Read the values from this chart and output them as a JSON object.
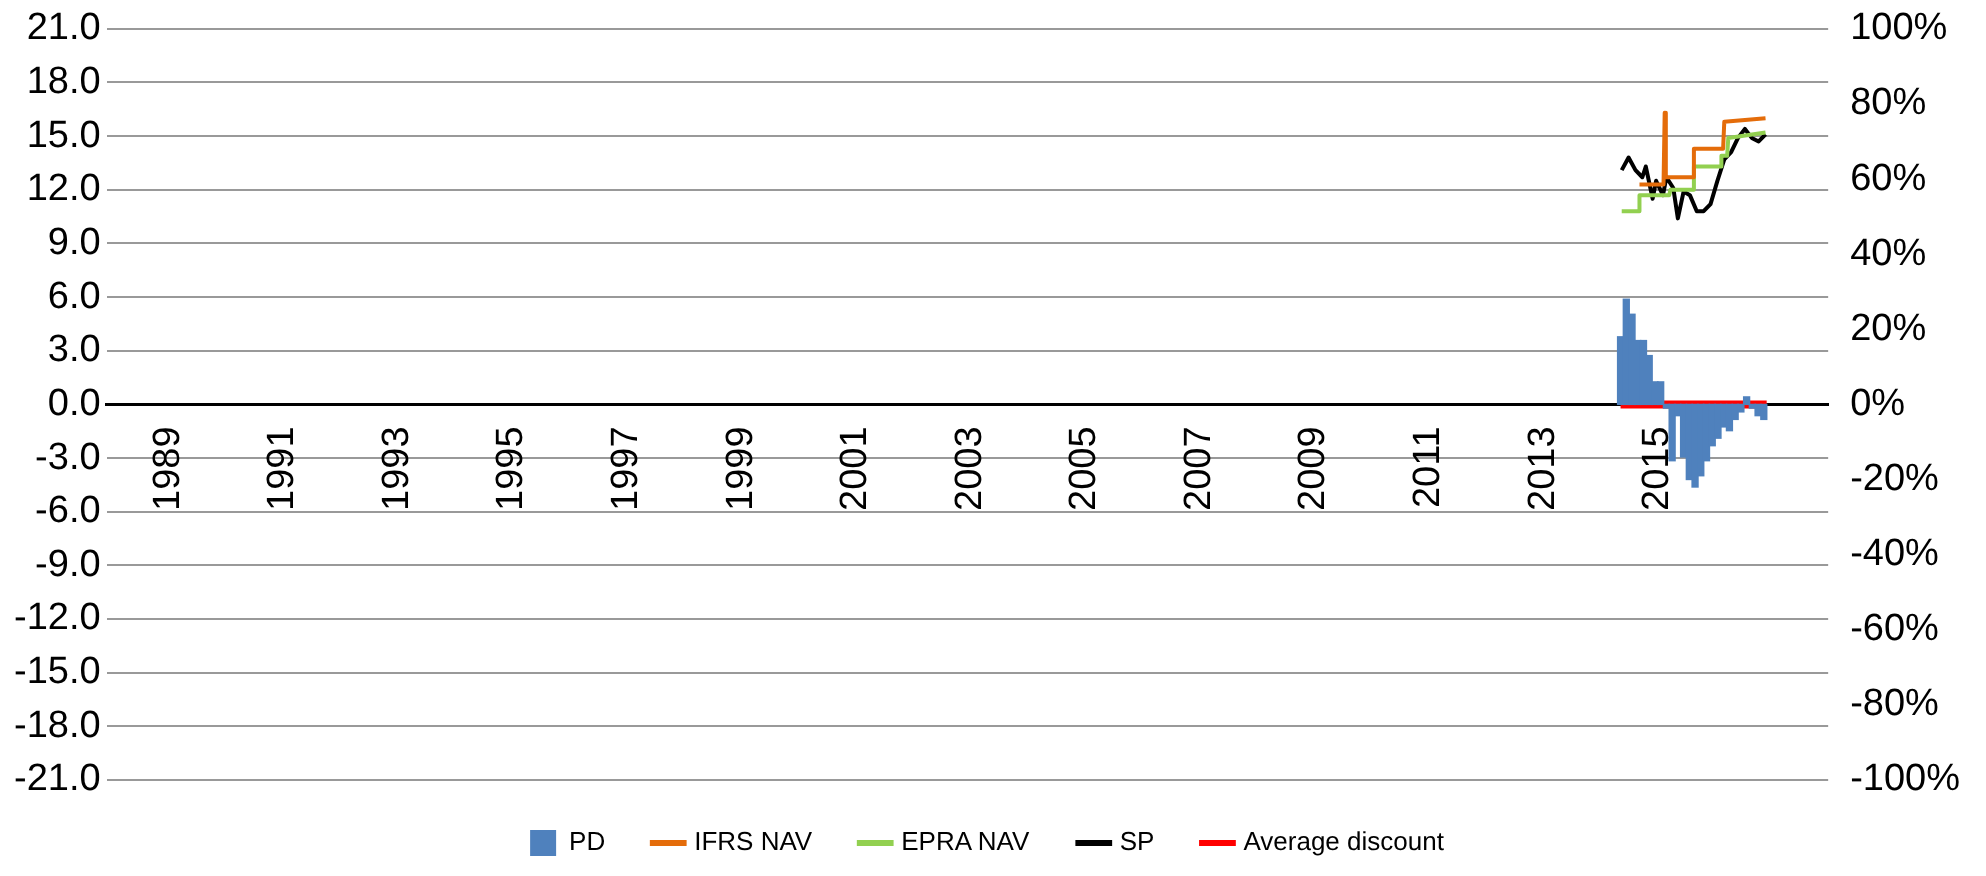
{
  "chart_data": {
    "type": "line",
    "xlim": [
      1989,
      2016.9
    ],
    "xticks": [
      1989,
      1991,
      1993,
      1995,
      1997,
      1999,
      2001,
      2003,
      2005,
      2007,
      2009,
      2011,
      2013,
      2015
    ],
    "ylim": [
      -21,
      21
    ],
    "yticks": [
      {
        "value": -21,
        "label": "-21.0"
      },
      {
        "value": -18,
        "label": "-18.0"
      },
      {
        "value": -15,
        "label": "-15.0"
      },
      {
        "value": -12,
        "label": "-12.0"
      },
      {
        "value": -9,
        "label": "-9.0"
      },
      {
        "value": -6,
        "label": "-6.0"
      },
      {
        "value": -3,
        "label": "-3.0"
      },
      {
        "value": 0,
        "label": "0.0"
      },
      {
        "value": 3,
        "label": "3.0"
      },
      {
        "value": 6,
        "label": "6.0"
      },
      {
        "value": 9,
        "label": "9.0"
      },
      {
        "value": 12,
        "label": "12.0"
      },
      {
        "value": 15,
        "label": "15.0"
      },
      {
        "value": 18,
        "label": "18.0"
      },
      {
        "value": 21,
        "label": "21.0"
      }
    ],
    "y2lim": [
      -100,
      100
    ],
    "y2ticks": [
      {
        "value": -100,
        "label": "-100%"
      },
      {
        "value": -80,
        "label": "-80%"
      },
      {
        "value": -60,
        "label": "-60%"
      },
      {
        "value": -40,
        "label": "-40%"
      },
      {
        "value": -20,
        "label": "-20%"
      },
      {
        "value": 0,
        "label": "0%"
      },
      {
        "value": 20,
        "label": "20%"
      },
      {
        "value": 40,
        "label": "40%"
      },
      {
        "value": 60,
        "label": "60%"
      },
      {
        "value": 80,
        "label": "80%"
      },
      {
        "value": 100,
        "label": "100%"
      }
    ],
    "grid": "y",
    "legend": "bottom",
    "marker": "none",
    "series": [
      {
        "name": "PD",
        "type": "bar",
        "axis": "y2",
        "color": "#4f81bd",
        "x": [
          2014.35,
          2014.45,
          2014.55,
          2014.65,
          2014.75,
          2014.85,
          2014.95,
          2015.05,
          2015.15,
          2015.25,
          2015.35,
          2015.45,
          2015.55,
          2015.65,
          2015.75,
          2015.85,
          2015.95,
          2016.05,
          2016.15,
          2016.25,
          2016.35,
          2016.45,
          2016.55,
          2016.65,
          2016.75,
          2016.85
        ],
        "values": [
          18,
          28,
          24,
          17,
          17,
          13,
          6,
          6,
          -1,
          -15,
          -3,
          -14,
          -20,
          -22,
          -19,
          -15,
          -11,
          -9,
          -6,
          -7,
          -4,
          -2,
          2,
          -1,
          -3,
          -4
        ]
      },
      {
        "name": "IFRS NAV",
        "color": "#e46c0a",
        "x": [
          2014.68,
          2015.1,
          2015.12,
          2015.14,
          2015.61,
          2015.63,
          2016.14,
          2016.16,
          2016.88
        ],
        "values": [
          12.3,
          12.3,
          16.3,
          12.7,
          12.7,
          14.3,
          14.3,
          15.8,
          16.0
        ]
      },
      {
        "name": "EPRA NAV",
        "color": "#92d050",
        "x": [
          2014.37,
          2014.66,
          2014.68,
          2015.2,
          2015.22,
          2015.61,
          2015.63,
          2016.09,
          2016.11,
          2016.21,
          2016.23,
          2016.88
        ],
        "values": [
          10.8,
          10.8,
          11.7,
          11.7,
          12.0,
          12.0,
          13.3,
          13.3,
          13.9,
          13.9,
          14.9,
          15.2
        ]
      },
      {
        "name": "SP",
        "color": "#000000",
        "x": [
          2014.37,
          2014.49,
          2014.61,
          2014.73,
          2014.79,
          2014.91,
          2014.97,
          2015.09,
          2015.15,
          2015.27,
          2015.35,
          2015.45,
          2015.56,
          2015.68,
          2015.8,
          2015.92,
          2016.04,
          2016.16,
          2016.28,
          2016.4,
          2016.52,
          2016.64,
          2016.76,
          2016.88
        ],
        "values": [
          13.1,
          13.8,
          13.1,
          12.7,
          13.3,
          11.5,
          12.5,
          11.7,
          12.7,
          12.1,
          10.4,
          11.9,
          11.7,
          10.8,
          10.8,
          11.2,
          12.5,
          13.7,
          14.1,
          14.9,
          15.4,
          14.9,
          14.7,
          15.1
        ]
      },
      {
        "name": "Average discount",
        "axis": "y2",
        "color": "#ff0000",
        "x": [
          2014.35,
          2016.9
        ],
        "values": [
          0,
          0
        ]
      }
    ]
  }
}
